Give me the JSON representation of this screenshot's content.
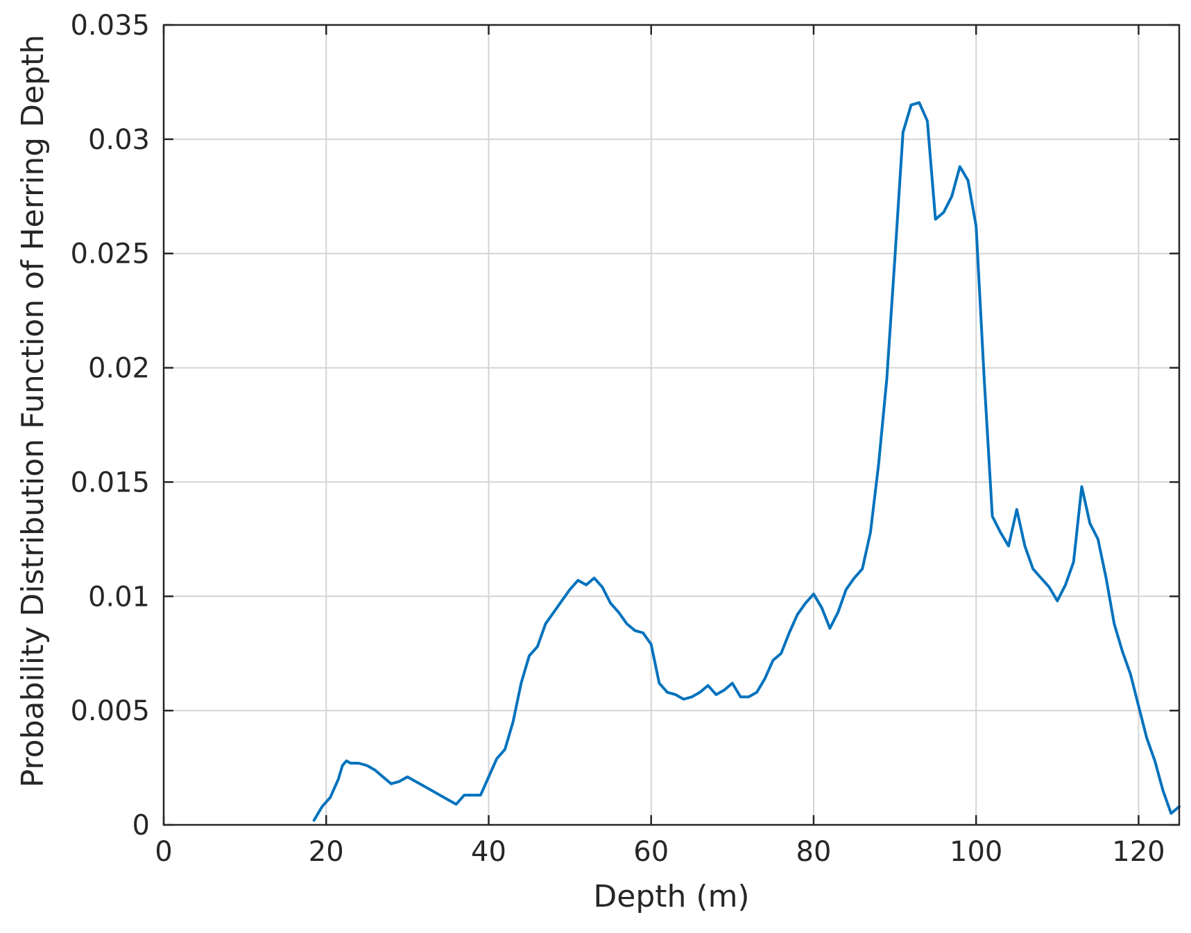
{
  "chart_data": {
    "type": "line",
    "xlabel": "Depth (m)",
    "ylabel": "Probability Distribution Function of Herring Depth",
    "xlim": [
      0,
      125
    ],
    "ylim": [
      0,
      0.035
    ],
    "grid": true,
    "legend": "none",
    "xticks": [
      "0",
      "20",
      "40",
      "60",
      "80",
      "100",
      "120"
    ],
    "yticks": [
      "0",
      "0.005",
      "0.01",
      "0.015",
      "0.02",
      "0.025",
      "0.03",
      "0.035"
    ],
    "series": [
      {
        "color": "#0072BD",
        "x": [
          18.5,
          19.5,
          20.5,
          21.5,
          22,
          22.5,
          23,
          24,
          25,
          26,
          27,
          28,
          29,
          30,
          31,
          32,
          33,
          34,
          35,
          36,
          37,
          38,
          39,
          40,
          41,
          42,
          43,
          44,
          45,
          46,
          47,
          48,
          49,
          50,
          51,
          52,
          53,
          54,
          55,
          56,
          57,
          58,
          59,
          60,
          61,
          62,
          63,
          64,
          65,
          66,
          67,
          68,
          69,
          70,
          71,
          72,
          73,
          74,
          75,
          76,
          77,
          78,
          79,
          80,
          81,
          82,
          83,
          84,
          85,
          86,
          87,
          88,
          89,
          90,
          91,
          92,
          93,
          94,
          95,
          96,
          97,
          98,
          99,
          100,
          101,
          102,
          103,
          104,
          105,
          106,
          107,
          108,
          109,
          110,
          111,
          112,
          113,
          114,
          115,
          116,
          117,
          118,
          119,
          120,
          121,
          122,
          123,
          124,
          125
        ],
        "y": [
          0.0002,
          0.0008,
          0.0012,
          0.002,
          0.0026,
          0.0028,
          0.0027,
          0.0027,
          0.0026,
          0.0024,
          0.0021,
          0.0018,
          0.0019,
          0.0021,
          0.0019,
          0.0017,
          0.0015,
          0.0013,
          0.0011,
          0.0009,
          0.0013,
          0.0013,
          0.0013,
          0.0021,
          0.0029,
          0.0033,
          0.0045,
          0.0062,
          0.0074,
          0.0078,
          0.0088,
          0.0093,
          0.0098,
          0.0103,
          0.0107,
          0.0105,
          0.0108,
          0.0104,
          0.0097,
          0.0093,
          0.0088,
          0.0085,
          0.0084,
          0.0079,
          0.0062,
          0.0058,
          0.0057,
          0.0055,
          0.0056,
          0.0058,
          0.0061,
          0.0057,
          0.0059,
          0.0062,
          0.0056,
          0.0056,
          0.0058,
          0.0064,
          0.0072,
          0.0075,
          0.0084,
          0.0092,
          0.0097,
          0.0101,
          0.0095,
          0.0086,
          0.0093,
          0.0103,
          0.0108,
          0.0112,
          0.0128,
          0.0158,
          0.0195,
          0.0248,
          0.0303,
          0.0315,
          0.0316,
          0.0308,
          0.0265,
          0.0268,
          0.0275,
          0.0288,
          0.0282,
          0.0262,
          0.0195,
          0.0135,
          0.0128,
          0.0122,
          0.0138,
          0.0122,
          0.0112,
          0.0108,
          0.0104,
          0.0098,
          0.0105,
          0.0115,
          0.0148,
          0.0132,
          0.0125,
          0.0108,
          0.0088,
          0.0076,
          0.0066,
          0.0052,
          0.0038,
          0.0028,
          0.0015,
          0.0005,
          0.0008
        ]
      }
    ]
  }
}
